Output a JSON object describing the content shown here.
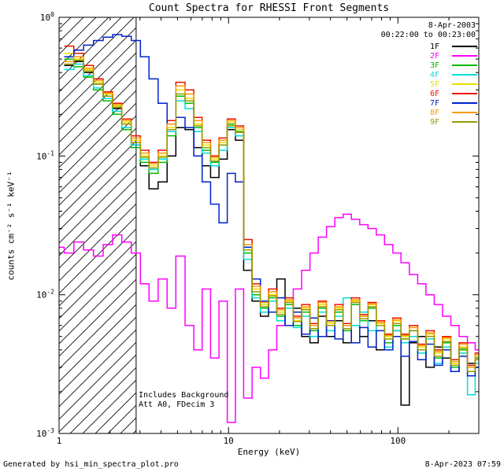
{
  "header": {
    "title": "Count Spectra for RHESSI Front Segments"
  },
  "annotations": {
    "date": "8-Apr-2003",
    "time_range": "00:22:00 to 00:23:00",
    "includes_background": "Includes Background",
    "att_line": "Att A0, FDecim 3"
  },
  "footer": {
    "left": "Generated by hsi_min_spectra_plot.pro",
    "right": "8-Apr-2023 07:59"
  },
  "chart_data": {
    "type": "line",
    "subtype": "histogram-step-spectra",
    "title": "Count Spectra for RHESSI Front Segments",
    "xlabel": "Energy (keV)",
    "ylabel": "counts cm⁻² s⁻¹ keV⁻¹",
    "x_scale": "log",
    "y_scale": "log",
    "xlim": [
      1,
      300
    ],
    "ylim": [
      0.001,
      1
    ],
    "x_tick_labels": [
      "1",
      "10",
      "100"
    ],
    "x_tick_values": [
      1,
      10,
      100
    ],
    "y_tick_base": "10",
    "y_tick_exponents": [
      "0",
      "-1",
      "-2",
      "-3"
    ],
    "y_tick_values": [
      1,
      0.1,
      0.01,
      0.001
    ],
    "grid": false,
    "legend_position": "top-right",
    "hatch_region_kev": [
      1,
      2.85
    ],
    "x_kev": [
      1.0,
      1.15,
      1.3,
      1.5,
      1.7,
      1.95,
      2.2,
      2.5,
      2.85,
      3.2,
      3.6,
      4.1,
      4.6,
      5.2,
      5.9,
      6.6,
      7.4,
      8.3,
      9.3,
      10.4,
      11.6,
      13.0,
      14.6,
      16.3,
      18.2,
      20.4,
      22.8,
      25.5,
      28.6,
      32.0,
      35.8,
      40.1,
      44.9,
      50.2,
      56.2,
      62.9,
      70.4,
      78.8,
      88.2,
      98.7,
      110,
      124,
      138,
      155,
      173,
      194,
      217,
      243,
      272,
      300
    ],
    "series": [
      {
        "name": "1F",
        "color": "#000000",
        "values": [
          null,
          0.45,
          0.48,
          0.4,
          0.33,
          0.27,
          0.22,
          0.17,
          0.12,
          0.085,
          0.058,
          0.065,
          0.1,
          0.16,
          0.155,
          0.115,
          0.085,
          0.07,
          0.095,
          0.155,
          0.13,
          0.015,
          0.009,
          0.007,
          0.009,
          0.013,
          0.006,
          0.008,
          0.005,
          0.0045,
          0.007,
          0.005,
          0.0065,
          0.0045,
          0.006,
          0.005,
          0.0065,
          0.004,
          0.005,
          0.0055,
          0.0016,
          0.0045,
          0.005,
          0.003,
          0.0042,
          0.0035,
          0.0028,
          0.0045,
          0.0032,
          0.003
        ]
      },
      {
        "name": "2F",
        "color": "#ff00ff",
        "values": [
          0.022,
          0.02,
          0.024,
          0.021,
          0.019,
          0.023,
          0.027,
          0.024,
          0.02,
          0.012,
          0.009,
          0.013,
          0.008,
          0.019,
          0.006,
          0.004,
          0.011,
          0.0035,
          0.009,
          0.0012,
          0.011,
          0.0018,
          0.003,
          0.0025,
          0.004,
          0.006,
          0.008,
          0.011,
          0.015,
          0.02,
          0.026,
          0.031,
          0.036,
          0.038,
          0.035,
          0.032,
          0.03,
          0.027,
          0.023,
          0.02,
          0.017,
          0.014,
          0.012,
          0.01,
          0.0085,
          0.007,
          0.006,
          0.005,
          0.0045,
          0.004
        ]
      },
      {
        "name": "3F",
        "color": "#00bb00",
        "values": [
          null,
          0.5,
          0.44,
          0.37,
          0.3,
          0.25,
          0.2,
          0.155,
          0.115,
          0.09,
          0.075,
          0.09,
          0.14,
          0.27,
          0.24,
          0.16,
          0.11,
          0.09,
          0.12,
          0.17,
          0.15,
          0.02,
          0.01,
          0.008,
          0.0095,
          0.007,
          0.0085,
          0.006,
          0.0075,
          0.0055,
          0.008,
          0.006,
          0.0075,
          0.0055,
          0.0085,
          0.0065,
          0.008,
          0.006,
          0.0045,
          0.006,
          0.0048,
          0.0055,
          0.004,
          0.005,
          0.0035,
          0.0045,
          0.003,
          0.004,
          0.0028,
          0.0035
        ]
      },
      {
        "name": "4F",
        "color": "#00dddd",
        "values": [
          null,
          0.42,
          0.46,
          0.38,
          0.31,
          0.26,
          0.21,
          0.16,
          0.12,
          0.095,
          0.08,
          0.095,
          0.15,
          0.25,
          0.22,
          0.15,
          0.105,
          0.085,
          0.11,
          0.16,
          0.14,
          0.018,
          0.0095,
          0.0075,
          0.009,
          0.0065,
          0.008,
          0.0058,
          0.007,
          0.005,
          0.0075,
          0.0055,
          0.007,
          0.0095,
          0.006,
          0.0075,
          0.0055,
          0.0065,
          0.0042,
          0.0055,
          0.0045,
          0.005,
          0.0038,
          0.0048,
          0.0032,
          0.0042,
          0.0028,
          0.0038,
          0.0019,
          0.0032
        ]
      },
      {
        "name": "5F",
        "color": "#eedd00",
        "values": [
          null,
          0.55,
          0.5,
          0.42,
          0.34,
          0.28,
          0.23,
          0.175,
          0.13,
          0.1,
          0.085,
          0.1,
          0.16,
          0.3,
          0.26,
          0.17,
          0.12,
          0.095,
          0.125,
          0.175,
          0.155,
          0.022,
          0.011,
          0.0085,
          0.01,
          0.0075,
          0.009,
          0.0065,
          0.008,
          0.006,
          0.0085,
          0.0062,
          0.008,
          0.006,
          0.009,
          0.007,
          0.0085,
          0.0062,
          0.005,
          0.0065,
          0.005,
          0.0058,
          0.0042,
          0.0052,
          0.0038,
          0.0048,
          0.0032,
          0.0042,
          0.003,
          0.0036
        ]
      },
      {
        "name": "6F",
        "color": "#ee1100",
        "values": [
          null,
          0.62,
          0.55,
          0.45,
          0.36,
          0.29,
          0.24,
          0.185,
          0.14,
          0.11,
          0.09,
          0.11,
          0.18,
          0.34,
          0.3,
          0.19,
          0.13,
          0.1,
          0.135,
          0.185,
          0.165,
          0.025,
          0.012,
          0.009,
          0.011,
          0.008,
          0.0095,
          0.007,
          0.0085,
          0.0062,
          0.009,
          0.0065,
          0.0085,
          0.0062,
          0.0095,
          0.0072,
          0.0088,
          0.0065,
          0.0052,
          0.0068,
          0.0052,
          0.006,
          0.0044,
          0.0055,
          0.004,
          0.005,
          0.0034,
          0.0045,
          0.0031,
          0.0038
        ]
      },
      {
        "name": "7F",
        "color": "#0022cc",
        "values": [
          null,
          0.52,
          0.58,
          0.63,
          0.68,
          0.72,
          0.75,
          0.73,
          0.68,
          0.52,
          0.36,
          0.24,
          0.17,
          0.19,
          0.16,
          0.1,
          0.065,
          0.045,
          0.033,
          0.075,
          0.065,
          0.022,
          0.013,
          0.009,
          0.0075,
          0.0095,
          0.006,
          0.0075,
          0.0052,
          0.0068,
          0.005,
          0.0065,
          0.0048,
          0.006,
          0.0045,
          0.0058,
          0.0042,
          0.0055,
          0.004,
          0.005,
          0.0036,
          0.0046,
          0.0034,
          0.0044,
          0.0031,
          0.004,
          0.0028,
          0.0036,
          0.0026,
          0.003
        ]
      },
      {
        "name": "8F",
        "color": "#ff9900",
        "values": [
          null,
          0.48,
          0.52,
          0.43,
          0.35,
          0.285,
          0.235,
          0.18,
          0.135,
          0.105,
          0.088,
          0.105,
          0.17,
          0.32,
          0.28,
          0.18,
          0.125,
          0.098,
          0.13,
          0.18,
          0.16,
          0.023,
          0.0115,
          0.0088,
          0.0105,
          0.0078,
          0.0092,
          0.0068,
          0.0082,
          0.006,
          0.0088,
          0.0064,
          0.0082,
          0.006,
          0.0092,
          0.007,
          0.0086,
          0.0063,
          0.0051,
          0.0066,
          0.0051,
          0.0058,
          0.0043,
          0.0053,
          0.0039,
          0.0049,
          0.0033,
          0.0044,
          0.003,
          0.0037
        ]
      },
      {
        "name": "9F",
        "color": "#9a9a00",
        "values": [
          null,
          0.46,
          0.49,
          0.41,
          0.33,
          0.27,
          0.225,
          0.17,
          0.125,
          0.098,
          0.082,
          0.098,
          0.155,
          0.28,
          0.25,
          0.165,
          0.115,
          0.092,
          0.12,
          0.165,
          0.148,
          0.021,
          0.0105,
          0.0082,
          0.0098,
          0.0072,
          0.0088,
          0.0064,
          0.0078,
          0.0057,
          0.0082,
          0.006,
          0.0078,
          0.0057,
          0.0088,
          0.0067,
          0.0082,
          0.006,
          0.0048,
          0.0062,
          0.0048,
          0.0055,
          0.004,
          0.005,
          0.0036,
          0.0046,
          0.0031,
          0.0041,
          0.0028,
          0.0034
        ]
      }
    ]
  }
}
